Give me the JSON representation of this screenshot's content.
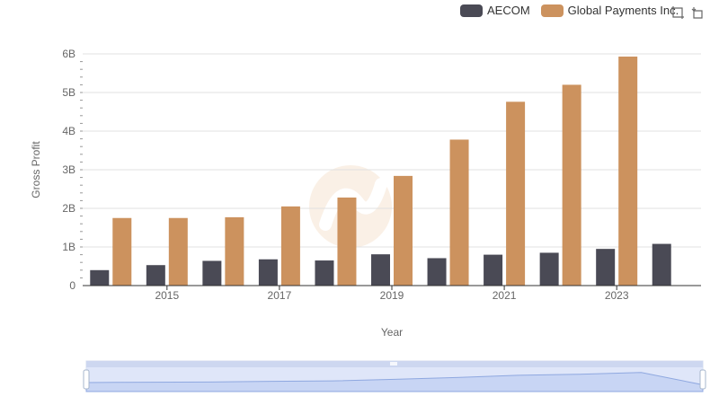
{
  "chart_data": {
    "type": "bar",
    "title": "",
    "xlabel": "Year",
    "ylabel": "Gross Profit",
    "x": [
      2014,
      2015,
      2016,
      2017,
      2018,
      2019,
      2020,
      2021,
      2022,
      2023,
      2024
    ],
    "x_tick_labels": [
      "2015",
      "2017",
      "2019",
      "2021",
      "2023"
    ],
    "y_tick_labels": [
      "0",
      "1B",
      "2B",
      "3B",
      "4B",
      "5B",
      "6B"
    ],
    "ylim": [
      0,
      6000000000
    ],
    "grid": true,
    "legend_position": "top-right",
    "series": [
      {
        "name": "AECOM",
        "color": "#4a4a55",
        "values": [
          400000000,
          530000000,
          640000000,
          680000000,
          650000000,
          810000000,
          710000000,
          800000000,
          850000000,
          950000000,
          1080000000
        ]
      },
      {
        "name": "Global Payments Inc.",
        "color": "#cc925e",
        "values": [
          1750000000,
          1750000000,
          1770000000,
          2050000000,
          2280000000,
          2840000000,
          3780000000,
          4760000000,
          5200000000,
          5930000000,
          null
        ]
      }
    ]
  },
  "legend": {
    "aecom_label": "AECOM",
    "gpn_label": "Global Payments Inc."
  },
  "toolbar": {
    "zoom_icon": "zoom-icon",
    "restore_icon": "restore-icon"
  },
  "colors": {
    "aecom": "#4a4a55",
    "gpn": "#cc925e",
    "grid": "#e0e0e0",
    "zoom_fill": "#d6e0f8"
  }
}
